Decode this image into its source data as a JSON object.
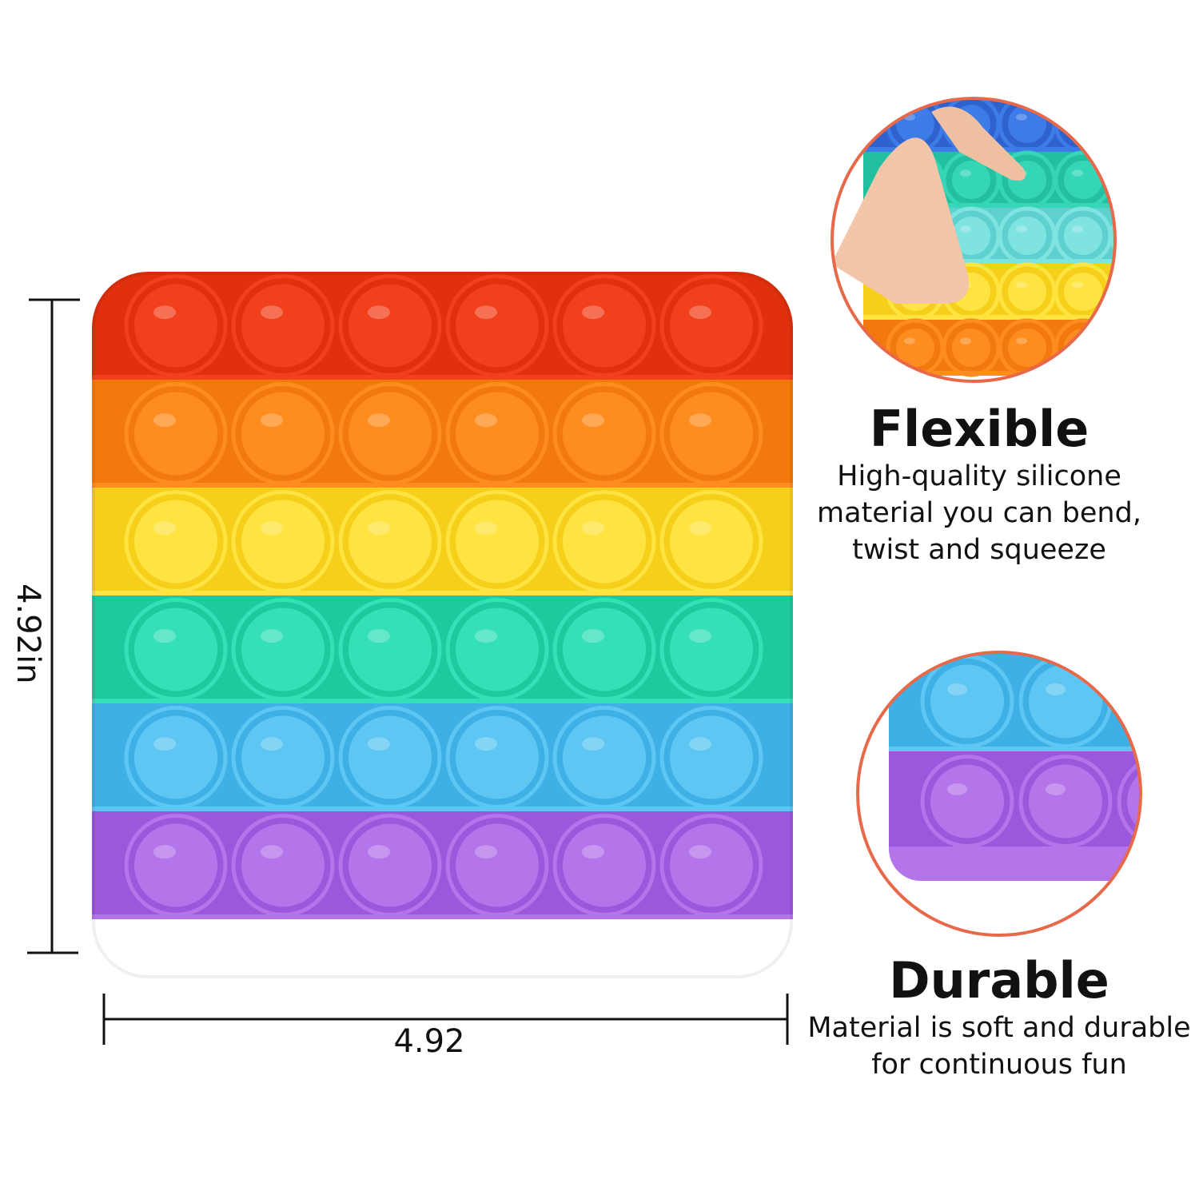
{
  "product": {
    "rows": [
      {
        "color": "#f2401c",
        "ring": "#e0300e"
      },
      {
        "color": "#ff8c1f",
        "ring": "#f27a0c"
      },
      {
        "color": "#ffe340",
        "ring": "#f5cf1a"
      },
      {
        "color": "#35e0b8",
        "ring": "#1fc99e"
      },
      {
        "color": "#5ec6f2",
        "ring": "#3fb0e6"
      },
      {
        "color": "#b474ea",
        "ring": "#9a58dc"
      }
    ],
    "bubbles_per_row": 6
  },
  "dimensions": {
    "height_label": "4.92in",
    "width_label": "4.92"
  },
  "features": [
    {
      "title": "Flexible",
      "lines": [
        "High-quality silicone",
        "material you can bend,",
        "twist and squeeze"
      ]
    },
    {
      "title": "Durable",
      "lines": [
        "Material is soft and durable",
        "for continuous fun"
      ]
    }
  ],
  "accent_color": "#e8694a"
}
